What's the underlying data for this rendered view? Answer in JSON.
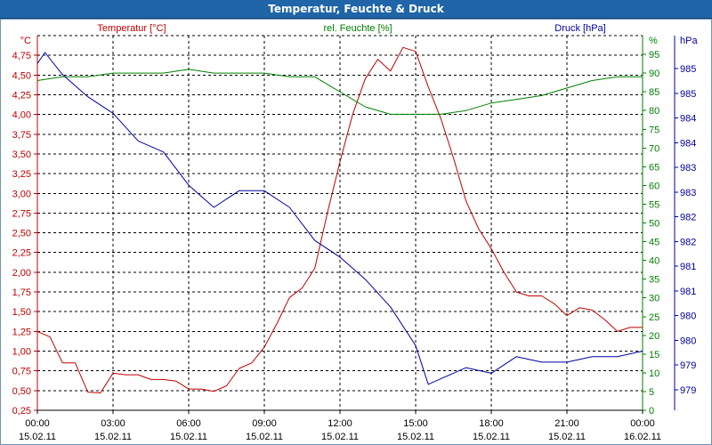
{
  "window": {
    "title": "Temperatur, Feuchte & Druck"
  },
  "chart_data": {
    "type": "line",
    "title": "Temperatur, Feuchte & Druck",
    "x_ticks": [
      {
        "t": 0,
        "time": "00:00",
        "date": "15.02.11"
      },
      {
        "t": 3,
        "time": "03:00",
        "date": "15.02.11"
      },
      {
        "t": 6,
        "time": "06:00",
        "date": "15.02.11"
      },
      {
        "t": 9,
        "time": "09:00",
        "date": "15.02.11"
      },
      {
        "t": 12,
        "time": "12:00",
        "date": "15.02.11"
      },
      {
        "t": 15,
        "time": "15:00",
        "date": "15.02.11"
      },
      {
        "t": 18,
        "time": "18:00",
        "date": "15.02.11"
      },
      {
        "t": 21,
        "time": "21:00",
        "date": "15.02.11"
      },
      {
        "t": 24,
        "time": "00:00",
        "date": "16.02.11"
      }
    ],
    "xlim": [
      0,
      24
    ],
    "axes": {
      "temperature": {
        "label": "Temperatur [°C]",
        "unit": "°C",
        "color": "#c00000",
        "ylim": [
          0.25,
          5.0
        ],
        "ticks": [
          "0,25",
          "0,50",
          "0,75",
          "1,00",
          "1,25",
          "1,50",
          "1,75",
          "2,00",
          "2,25",
          "2,50",
          "2,75",
          "3,00",
          "3,25",
          "3,50",
          "3,75",
          "4,00",
          "4,25",
          "4,50",
          "4,75"
        ]
      },
      "humidity": {
        "label": "rel. Feuchte [%]",
        "unit": "%",
        "color": "#008000",
        "ylim": [
          0,
          100
        ],
        "ticks": [
          "0",
          "5",
          "10",
          "15",
          "20",
          "25",
          "30",
          "35",
          "40",
          "45",
          "50",
          "55",
          "60",
          "65",
          "70",
          "75",
          "80",
          "85",
          "90",
          "95"
        ]
      },
      "pressure": {
        "label": "Druck [hPa]",
        "unit": "hPa",
        "color": "#0000a0",
        "ticks": [
          "979",
          "979",
          "980",
          "980",
          "981",
          "981",
          "982",
          "982",
          "983",
          "983",
          "984",
          "984",
          "985",
          "985"
        ]
      }
    },
    "series": [
      {
        "name": "Temperatur",
        "axis": "temperature",
        "color": "#c00000",
        "x": [
          0,
          0.5,
          1,
          1.5,
          2,
          2.5,
          3,
          3.5,
          4,
          4.5,
          5,
          5.5,
          6,
          6.5,
          7,
          7.5,
          8,
          8.5,
          9,
          9.5,
          10,
          10.5,
          11,
          11.5,
          12,
          12.5,
          13,
          13.5,
          14,
          14.5,
          15,
          15.5,
          16,
          16.5,
          17,
          17.5,
          18,
          18.5,
          19,
          19.5,
          20,
          20.5,
          21,
          21.5,
          22,
          22.5,
          23,
          23.5,
          24
        ],
        "values": [
          1.25,
          1.18,
          0.85,
          0.85,
          0.48,
          0.47,
          0.72,
          0.7,
          0.7,
          0.64,
          0.64,
          0.62,
          0.52,
          0.52,
          0.49,
          0.56,
          0.78,
          0.85,
          1.05,
          1.35,
          1.68,
          1.8,
          2.05,
          2.75,
          3.4,
          4.0,
          4.45,
          4.7,
          4.55,
          4.85,
          4.8,
          4.35,
          3.95,
          3.45,
          2.9,
          2.55,
          2.3,
          2.0,
          1.75,
          1.7,
          1.7,
          1.6,
          1.45,
          1.55,
          1.52,
          1.4,
          1.25,
          1.3,
          1.3
        ]
      },
      {
        "name": "rel. Feuchte",
        "axis": "humidity",
        "color": "#008000",
        "x": [
          0,
          1,
          2,
          3,
          4,
          5,
          6,
          7,
          8,
          9,
          10,
          11,
          12,
          13,
          14,
          15,
          16,
          17,
          18,
          19,
          20,
          21,
          22,
          23,
          24
        ],
        "values": [
          88,
          89,
          89,
          90,
          90,
          90,
          91,
          90,
          90,
          90,
          89,
          89,
          85,
          81,
          79,
          79,
          79,
          80,
          82,
          83,
          84,
          86,
          88,
          89,
          89
        ]
      },
      {
        "name": "Druck",
        "axis": "pressure",
        "color": "#0000a0",
        "x": [
          0,
          0.3,
          1,
          2,
          3,
          4,
          5,
          6,
          7,
          8,
          8.5,
          9,
          10,
          11,
          12,
          13,
          14,
          15,
          15.5,
          16,
          17,
          18,
          19,
          20,
          21,
          22,
          23,
          24
        ],
        "values": [
          985.2,
          985.4,
          985.0,
          984.6,
          984.3,
          983.8,
          983.6,
          983.0,
          982.6,
          982.9,
          982.9,
          982.9,
          982.6,
          982.0,
          981.7,
          981.3,
          980.8,
          980.1,
          979.4,
          979.5,
          979.7,
          979.6,
          979.9,
          979.8,
          979.8,
          979.9,
          979.9,
          980.0
        ]
      }
    ]
  }
}
